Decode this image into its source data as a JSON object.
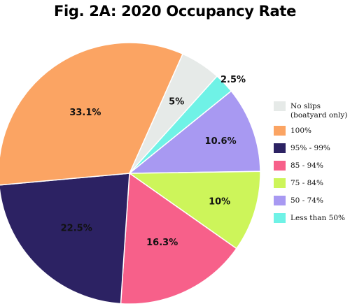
{
  "chart_data": {
    "type": "pie",
    "title": "Fig. 2A: 2020 Occupancy Rate",
    "slices": [
      {
        "label": "No slips\n(boatyard only)",
        "value": 5,
        "display": "5%",
        "color": "#e6eae8"
      },
      {
        "label": "Less than 50%",
        "value": 2.5,
        "display": "2.5%",
        "color": "#6ff2e6"
      },
      {
        "label": "50 - 74%",
        "value": 10.6,
        "display": "10.6%",
        "color": "#a899f2"
      },
      {
        "label": "75 - 84%",
        "value": 10,
        "display": "10%",
        "color": "#cdf55a"
      },
      {
        "label": "85 - 94%",
        "value": 16.3,
        "display": "16.3%",
        "color": "#f7608a"
      },
      {
        "label": "95% - 99%",
        "value": 22.5,
        "display": "22.5%",
        "color": "#2c2263"
      },
      {
        "label": "100%",
        "value": 33.1,
        "display": "33.1%",
        "color": "#fba463"
      }
    ],
    "legend_order": [
      "No slips\n(boatyard only)",
      "100%",
      "95% - 99%",
      "85 - 94%",
      "75 - 84%",
      "50 - 74%",
      "Less than 50%"
    ],
    "legend_position": "right"
  }
}
